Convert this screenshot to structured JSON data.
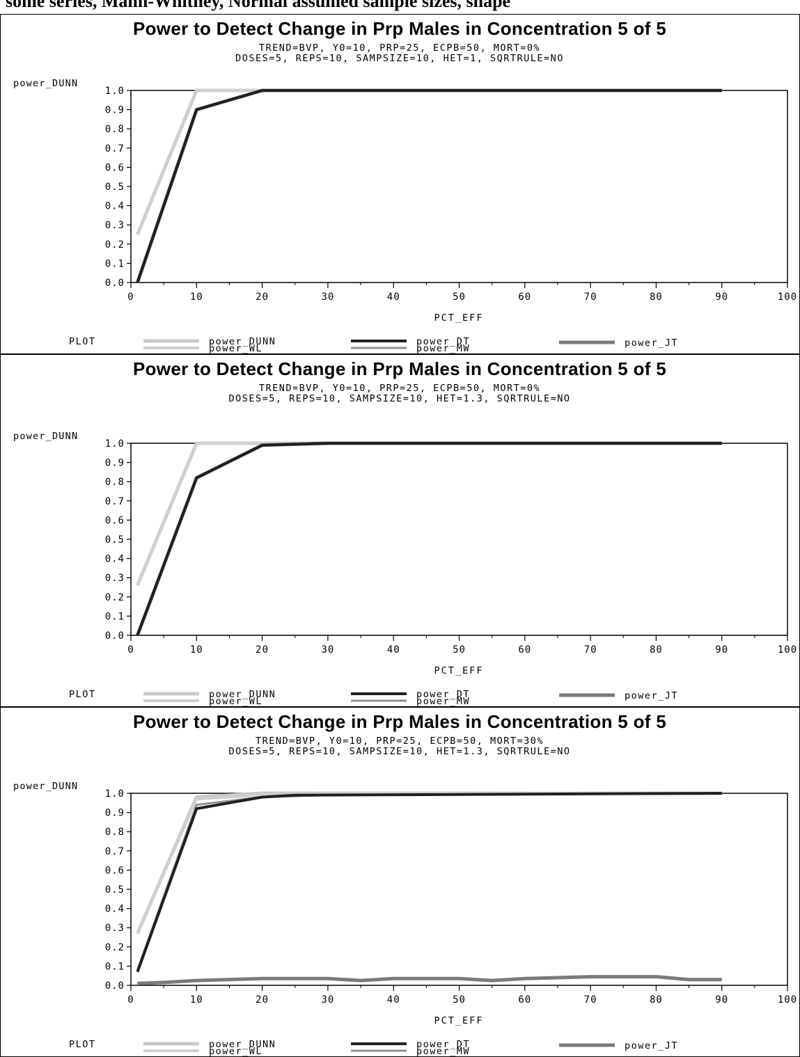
{
  "page": {
    "top_caption": "some series, Mann-Whitney, Normal assumed sample sizes, shape"
  },
  "colors": {
    "power_DUNN": "#c8c8c8",
    "power_DT": "#202020",
    "power_JT": "#7a7a7a",
    "power_WL": "#d0d0d0",
    "power_MW": "#909090",
    "frame": "#000000"
  },
  "chart_data": [
    {
      "type": "line",
      "title": "Power to Detect Change in Prp Males in Concentration 5 of 5",
      "subtitle_1": "TREND=BVP, Y0=10, PRP=25, ECPB=50, MORT=0%",
      "subtitle_2": "DOSES=5, REPS=10, SAMPSIZE=10, HET=1, SQRTRULE=NO",
      "ylabel": "power_DUNN",
      "xlabel": "PCT_EFF",
      "xlim": [
        0,
        100
      ],
      "ylim": [
        0,
        1
      ],
      "xticks": [
        "0",
        "10",
        "20",
        "30",
        "40",
        "50",
        "60",
        "70",
        "80",
        "90",
        "100"
      ],
      "yticks": [
        "0.0",
        "0.1",
        "0.2",
        "0.3",
        "0.4",
        "0.5",
        "0.6",
        "0.7",
        "0.8",
        "0.9",
        "1.0"
      ],
      "legend_title": "PLOT",
      "legend_position": "bottom",
      "grid": false,
      "series": [
        {
          "name": "power_DUNN",
          "x": [
            1,
            10,
            20,
            90
          ],
          "y": [
            0.25,
            1.0,
            1.0,
            1.0
          ]
        },
        {
          "name": "power_WL",
          "x": [
            1,
            10,
            20,
            90
          ],
          "y": [
            0.25,
            1.0,
            1.0,
            1.0
          ]
        },
        {
          "name": "power_DT",
          "x": [
            1,
            10,
            20,
            90
          ],
          "y": [
            0.0,
            0.9,
            1.0,
            1.0
          ]
        },
        {
          "name": "power_MW",
          "x": [
            1,
            10,
            20,
            90
          ],
          "y": [
            0.0,
            0.9,
            1.0,
            1.0
          ]
        },
        {
          "name": "power_JT",
          "x": [
            1,
            10,
            20,
            90
          ],
          "y": [
            0.0,
            0.9,
            1.0,
            1.0
          ]
        }
      ]
    },
    {
      "type": "line",
      "title": "Power to Detect Change in Prp Males in Concentration 5 of 5",
      "subtitle_1": "TREND=BVP, Y0=10, PRP=25, ECPB=50, MORT=0%",
      "subtitle_2": "DOSES=5, REPS=10, SAMPSIZE=10, HET=1.3, SQRTRULE=NO",
      "ylabel": "power_DUNN",
      "xlabel": "PCT_EFF",
      "xlim": [
        0,
        100
      ],
      "ylim": [
        0,
        1
      ],
      "xticks": [
        "0",
        "10",
        "20",
        "30",
        "40",
        "50",
        "60",
        "70",
        "80",
        "90",
        "100"
      ],
      "yticks": [
        "0.0",
        "0.1",
        "0.2",
        "0.3",
        "0.4",
        "0.5",
        "0.6",
        "0.7",
        "0.8",
        "0.9",
        "1.0"
      ],
      "legend_title": "PLOT",
      "legend_position": "bottom",
      "grid": false,
      "series": [
        {
          "name": "power_DUNN",
          "x": [
            1,
            10,
            20,
            90
          ],
          "y": [
            0.26,
            1.0,
            1.0,
            1.0
          ]
        },
        {
          "name": "power_WL",
          "x": [
            1,
            10,
            20,
            90
          ],
          "y": [
            0.26,
            1.0,
            1.0,
            1.0
          ]
        },
        {
          "name": "power_DT",
          "x": [
            1,
            10,
            20,
            30,
            90
          ],
          "y": [
            0.0,
            0.82,
            0.99,
            1.0,
            1.0
          ]
        },
        {
          "name": "power_MW",
          "x": [
            1,
            10,
            20,
            30,
            90
          ],
          "y": [
            0.0,
            0.82,
            0.99,
            1.0,
            1.0
          ]
        },
        {
          "name": "power_JT",
          "x": [
            1,
            10,
            20,
            30,
            90
          ],
          "y": [
            0.0,
            0.82,
            0.99,
            1.0,
            1.0
          ]
        }
      ]
    },
    {
      "type": "line",
      "title": "Power to Detect Change in Prp Males in Concentration 5 of 5",
      "subtitle_1": "TREND=BVP, Y0=10, PRP=25, ECPB=50, MORT=30%",
      "subtitle_2": "DOSES=5, REPS=10, SAMPSIZE=10, HET=1.3, SQRTRULE=NO",
      "ylabel": "power_DUNN",
      "xlabel": "PCT_EFF",
      "xlim": [
        0,
        100
      ],
      "ylim": [
        0,
        1
      ],
      "xticks": [
        "0",
        "10",
        "20",
        "30",
        "40",
        "50",
        "60",
        "70",
        "80",
        "90",
        "100"
      ],
      "yticks": [
        "0.0",
        "0.1",
        "0.2",
        "0.3",
        "0.4",
        "0.5",
        "0.6",
        "0.7",
        "0.8",
        "0.9",
        "1.0"
      ],
      "legend_title": "PLOT",
      "legend_position": "bottom",
      "grid": false,
      "series": [
        {
          "name": "power_DUNN",
          "x": [
            1,
            10,
            20,
            30,
            90
          ],
          "y": [
            0.27,
            0.98,
            1.0,
            1.0,
            1.0
          ]
        },
        {
          "name": "power_WL",
          "x": [
            1,
            10,
            20,
            30,
            90
          ],
          "y": [
            0.27,
            0.97,
            0.99,
            1.0,
            1.0
          ]
        },
        {
          "name": "power_DT",
          "x": [
            1,
            10,
            15,
            20,
            25,
            90
          ],
          "y": [
            0.07,
            0.92,
            0.95,
            0.98,
            0.99,
            1.0
          ]
        },
        {
          "name": "power_MW",
          "x": [
            1,
            10,
            15,
            20,
            30,
            90
          ],
          "y": [
            0.08,
            0.94,
            0.96,
            0.98,
            0.99,
            1.0
          ]
        },
        {
          "name": "power_JT",
          "x": [
            1,
            5,
            10,
            20,
            30,
            35,
            40,
            50,
            55,
            60,
            70,
            80,
            85,
            90
          ],
          "y": [
            0.01,
            0.015,
            0.025,
            0.035,
            0.035,
            0.025,
            0.035,
            0.035,
            0.025,
            0.035,
            0.045,
            0.045,
            0.03,
            0.03
          ]
        }
      ]
    }
  ]
}
